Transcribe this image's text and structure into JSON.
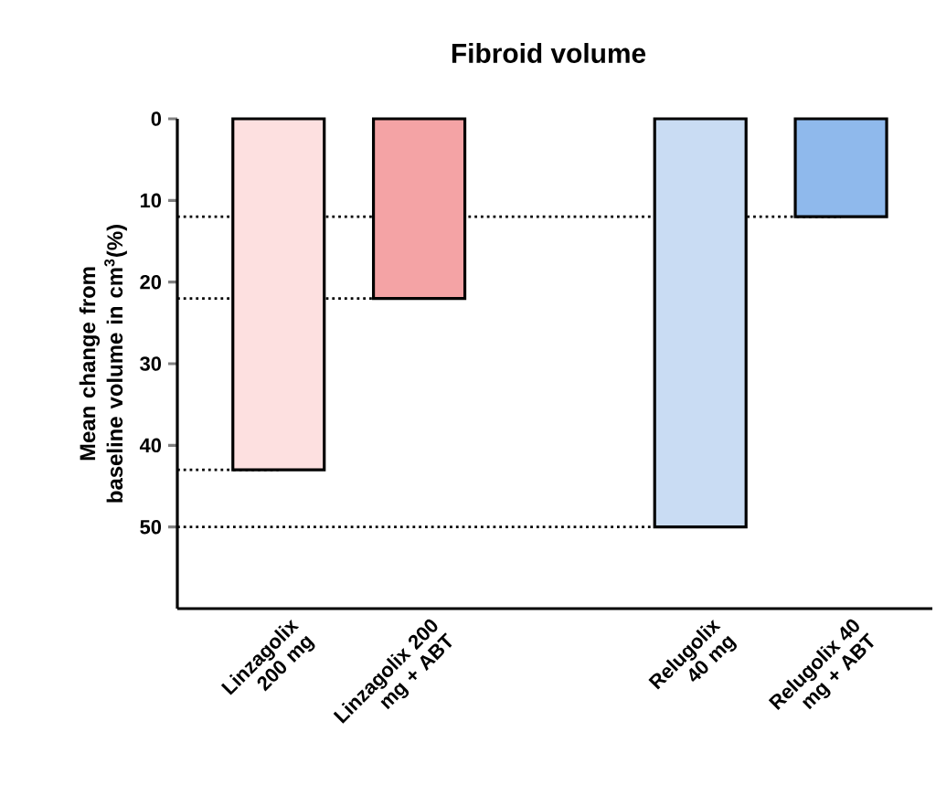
{
  "chart_data": {
    "type": "bar",
    "title": "Fibroid volume",
    "ylabel": "Mean change from baseline volume in cm$^{3}$(%)",
    "categories": [
      "Linzagolix 200 mg",
      "Linzagolix 200 mg + ABT",
      null,
      "Relugolix 40 mg",
      "Relugolix 40 mg + ABT"
    ],
    "values": [
      43,
      22,
      null,
      50,
      12
    ],
    "colors": [
      "#fde0e0",
      "#f4a3a5",
      null,
      "#c9dcf3",
      "#8fb9ec"
    ],
    "ylim": [
      60,
      0
    ],
    "yticks": [
      0,
      10,
      20,
      30,
      40,
      50
    ],
    "ref_lines": [
      {
        "axis": "y",
        "value": 12,
        "line_style": "dotted"
      },
      {
        "axis": "y",
        "value": 22,
        "line_style": "dotted"
      },
      {
        "axis": "y",
        "value": 43,
        "line_style": "dotted"
      },
      {
        "axis": "y",
        "value": 50,
        "line_style": "dotted"
      }
    ]
  }
}
